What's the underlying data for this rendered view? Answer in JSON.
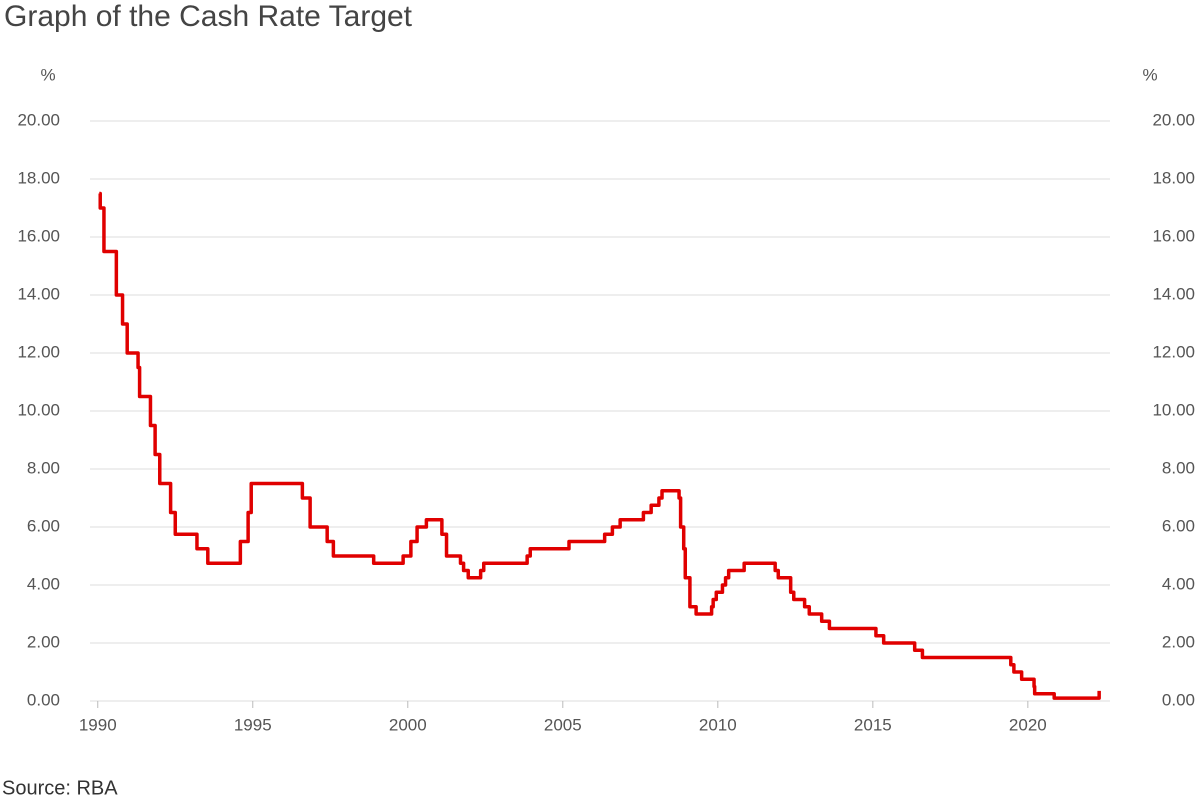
{
  "chart_data": {
    "type": "line",
    "title": "Graph of the Cash Rate Target",
    "source": "Source: RBA",
    "y_unit": "%",
    "xlim": [
      1989.75,
      2022.65
    ],
    "xticks": [
      1990,
      1995,
      2000,
      2005,
      2010,
      2015,
      2020
    ],
    "ylim": [
      0,
      20
    ],
    "yticks": [
      {
        "value": 0,
        "label": "0.00"
      },
      {
        "value": 2,
        "label": "2.00"
      },
      {
        "value": 4,
        "label": "4.00"
      },
      {
        "value": 6,
        "label": "6.00"
      },
      {
        "value": 8,
        "label": "8.00"
      },
      {
        "value": 10,
        "label": "10.00"
      },
      {
        "value": 12,
        "label": "12.00"
      },
      {
        "value": 14,
        "label": "14.00"
      },
      {
        "value": 16,
        "label": "16.00"
      },
      {
        "value": 18,
        "label": "18.00"
      },
      {
        "value": 20,
        "label": "20.00"
      }
    ],
    "grid": true,
    "series": [
      {
        "color": "#e00000",
        "x": [
          1990.05,
          1990.08,
          1990.08,
          1990.2,
          1990.2,
          1990.6,
          1990.6,
          1990.8,
          1990.8,
          1990.95,
          1990.95,
          1991.3,
          1991.3,
          1991.35,
          1991.35,
          1991.7,
          1991.7,
          1991.85,
          1991.85,
          1992.0,
          1992.0,
          1992.35,
          1992.35,
          1992.5,
          1992.5,
          1993.2,
          1993.2,
          1993.55,
          1993.55,
          1994.6,
          1994.6,
          1994.85,
          1994.85,
          1994.95,
          1994.95,
          1996.6,
          1996.6,
          1996.85,
          1996.85,
          1997.4,
          1997.4,
          1997.6,
          1997.6,
          1998.9,
          1998.9,
          1999.85,
          1999.85,
          2000.1,
          2000.1,
          2000.3,
          2000.3,
          2000.6,
          2000.6,
          2001.1,
          2001.1,
          2001.25,
          2001.25,
          2001.7,
          2001.7,
          2001.8,
          2001.8,
          2001.95,
          2001.95,
          2002.35,
          2002.35,
          2002.45,
          2002.45,
          2003.85,
          2003.85,
          2003.95,
          2003.95,
          2005.2,
          2005.2,
          2006.35,
          2006.35,
          2006.6,
          2006.6,
          2006.85,
          2006.85,
          2007.6,
          2007.6,
          2007.85,
          2007.85,
          2008.1,
          2008.1,
          2008.2,
          2008.2,
          2008.75,
          2008.75,
          2008.8,
          2008.8,
          2008.9,
          2008.9,
          2008.95,
          2008.95,
          2009.1,
          2009.1,
          2009.3,
          2009.3,
          2009.8,
          2009.8,
          2009.85,
          2009.85,
          2009.95,
          2009.95,
          2010.15,
          2010.15,
          2010.25,
          2010.25,
          2010.35,
          2010.35,
          2010.85,
          2010.85,
          2011.85,
          2011.85,
          2011.95,
          2011.95,
          2012.35,
          2012.35,
          2012.45,
          2012.45,
          2012.8,
          2012.8,
          2012.95,
          2012.95,
          2013.35,
          2013.35,
          2013.6,
          2013.6,
          2015.1,
          2015.1,
          2015.35,
          2015.35,
          2016.35,
          2016.35,
          2016.6,
          2016.6,
          2019.45,
          2019.45,
          2019.55,
          2019.55,
          2019.8,
          2019.8,
          2020.2,
          2020.2,
          2020.22,
          2020.22,
          2020.85,
          2020.85,
          2022.3,
          2022.3
        ],
        "values": [
          17.5,
          17.5,
          17,
          17,
          15.5,
          15.5,
          14,
          14,
          13,
          13,
          12,
          12,
          11.5,
          11.5,
          10.5,
          10.5,
          9.5,
          9.5,
          8.5,
          8.5,
          7.5,
          7.5,
          6.5,
          6.5,
          5.75,
          5.75,
          5.25,
          5.25,
          4.75,
          4.75,
          5.5,
          5.5,
          6.5,
          6.5,
          7.5,
          7.5,
          7,
          7,
          6,
          6,
          5.5,
          5.5,
          5,
          5,
          4.75,
          4.75,
          5,
          5,
          5.5,
          5.5,
          6,
          6,
          6.25,
          6.25,
          5.75,
          5.75,
          5,
          5,
          4.75,
          4.75,
          4.5,
          4.5,
          4.25,
          4.25,
          4.5,
          4.5,
          4.75,
          4.75,
          5,
          5,
          5.25,
          5.25,
          5.5,
          5.5,
          5.75,
          5.75,
          6,
          6,
          6.25,
          6.25,
          6.5,
          6.5,
          6.75,
          6.75,
          7,
          7,
          7.25,
          7.25,
          7,
          7,
          6,
          6,
          5.25,
          5.25,
          4.25,
          4.25,
          3.25,
          3.25,
          3,
          3,
          3.25,
          3.25,
          3.5,
          3.5,
          3.75,
          3.75,
          4,
          4,
          4.25,
          4.25,
          4.5,
          4.5,
          4.75,
          4.75,
          4.5,
          4.5,
          4.25,
          4.25,
          3.75,
          3.75,
          3.5,
          3.5,
          3.25,
          3.25,
          3,
          3,
          2.75,
          2.75,
          2.5,
          2.5,
          2.25,
          2.25,
          2,
          2,
          1.75,
          1.75,
          1.5,
          1.5,
          1.25,
          1.25,
          1,
          1,
          0.75,
          0.75,
          0.5,
          0.5,
          0.25,
          0.25,
          0.1,
          0.1,
          0.35
        ]
      }
    ]
  }
}
